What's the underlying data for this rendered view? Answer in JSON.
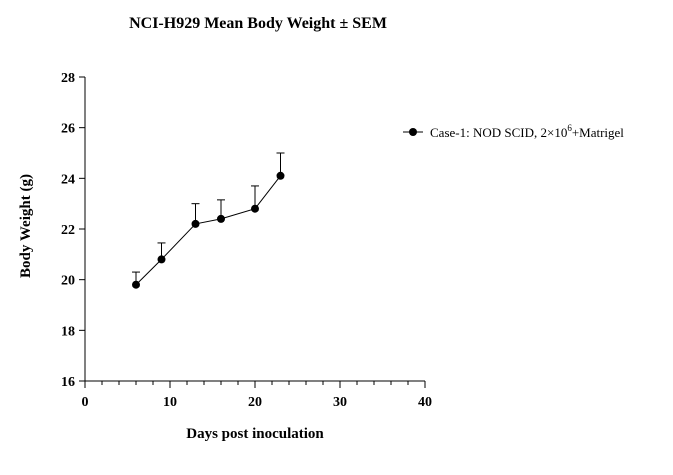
{
  "chart_data": {
    "type": "line",
    "title": "NCI-H929 Mean Body Weight ± SEM",
    "xlabel": "Days post inoculation",
    "ylabel": "Body Weight (g)",
    "xlim": [
      0,
      40
    ],
    "ylim": [
      16,
      28
    ],
    "x_ticks": [
      0,
      10,
      20,
      30,
      40
    ],
    "y_ticks": [
      16,
      18,
      20,
      22,
      24,
      26,
      28
    ],
    "x_minor_step": 2,
    "grid": false,
    "legend_position": "right",
    "series": [
      {
        "name_parts": {
          "prefix": "Case-1: NOD SCID, 2×10",
          "superscript": "6",
          "suffix": "+Matrigel"
        },
        "color": "#000000",
        "marker": "circle",
        "x": [
          6,
          9,
          13,
          16,
          20,
          23
        ],
        "y": [
          19.8,
          20.8,
          22.2,
          22.4,
          22.8,
          24.1
        ],
        "sem": [
          0.5,
          0.65,
          0.8,
          0.75,
          0.9,
          0.9
        ]
      }
    ]
  }
}
